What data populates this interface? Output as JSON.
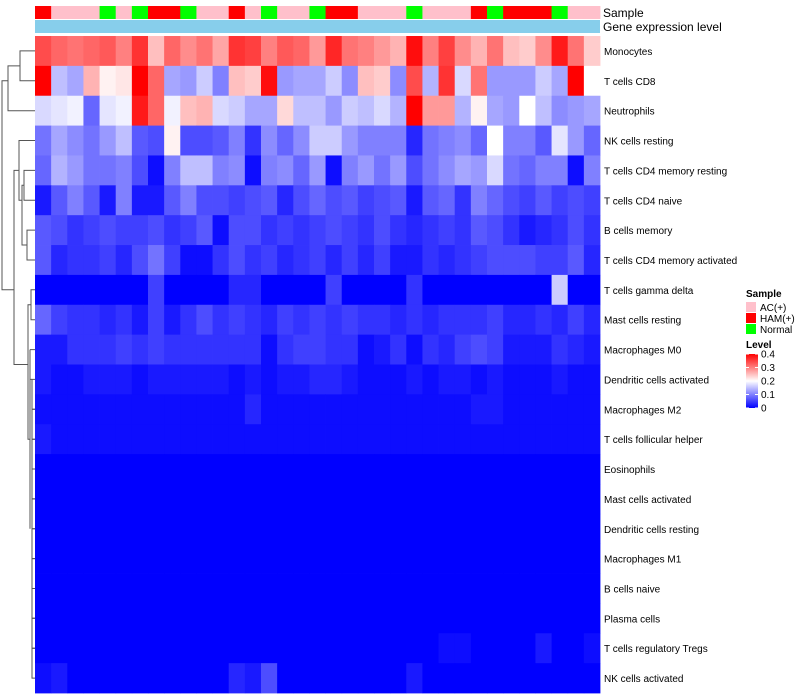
{
  "chart_data": {
    "type": "heatmap",
    "title": "",
    "column_annotations": [
      {
        "name": "Sample",
        "values": [
          "HAM(+)",
          "AC(+)",
          "AC(+)",
          "AC(+)",
          "Normal",
          "AC(+)",
          "Normal",
          "HAM(+)",
          "HAM(+)",
          "Normal",
          "AC(+)",
          "AC(+)",
          "HAM(+)",
          "AC(+)",
          "Normal",
          "AC(+)",
          "AC(+)",
          "Normal",
          "HAM(+)",
          "HAM(+)",
          "AC(+)",
          "AC(+)",
          "AC(+)",
          "Normal",
          "AC(+)",
          "AC(+)",
          "AC(+)",
          "HAM(+)",
          "Normal",
          "HAM(+)",
          "HAM(+)",
          "HAM(+)",
          "Normal",
          "AC(+)",
          "AC(+)"
        ]
      },
      {
        "name": "Gene expression level",
        "values": []
      }
    ],
    "rows": [
      "Monocytes",
      "T cells CD8",
      "Neutrophils",
      "NK cells resting",
      "T cells CD4 memory resting",
      "T cells CD4 naive",
      "B cells memory",
      "T cells CD4 memory activated",
      "T cells gamma delta",
      "Mast cells resting",
      "Macrophages M0",
      "Dendritic cells activated",
      "Macrophages M2",
      "T cells follicular helper",
      "Eosinophils",
      "Mast cells activated",
      "Dendritic cells resting",
      "Macrophages M1",
      "B cells naive",
      "Plasma cells",
      "T cells regulatory  Tregs",
      "NK cells activated"
    ],
    "n_columns": 35,
    "values": [
      [
        0.34,
        0.32,
        0.31,
        0.32,
        0.33,
        0.3,
        0.36,
        0.25,
        0.32,
        0.29,
        0.31,
        0.27,
        0.36,
        0.35,
        0.3,
        0.33,
        0.32,
        0.28,
        0.37,
        0.31,
        0.3,
        0.28,
        0.26,
        0.39,
        0.3,
        0.35,
        0.29,
        0.26,
        0.31,
        0.25,
        0.24,
        0.29,
        0.38,
        0.31,
        0.24
      ],
      [
        0.4,
        0.15,
        0.13,
        0.26,
        0.21,
        0.22,
        0.4,
        0.32,
        0.13,
        0.12,
        0.16,
        0.1,
        0.25,
        0.24,
        0.39,
        0.12,
        0.13,
        0.13,
        0.16,
        0.11,
        0.25,
        0.24,
        0.11,
        0.34,
        0.14,
        0.36,
        0.17,
        0.31,
        0.12,
        0.12,
        0.12,
        0.16,
        0.13,
        0.4,
        0.2
      ],
      [
        0.17,
        0.18,
        0.19,
        0.08,
        0.18,
        0.19,
        0.38,
        0.32,
        0.19,
        0.25,
        0.26,
        0.17,
        0.16,
        0.13,
        0.13,
        0.23,
        0.15,
        0.15,
        0.12,
        0.16,
        0.15,
        0.17,
        0.14,
        0.4,
        0.28,
        0.28,
        0.14,
        0.21,
        0.13,
        0.12,
        0.2,
        0.15,
        0.11,
        0.12,
        0.13
      ],
      [
        0.09,
        0.13,
        0.11,
        0.09,
        0.12,
        0.15,
        0.07,
        0.06,
        0.21,
        0.06,
        0.06,
        0.07,
        0.1,
        0.04,
        0.11,
        0.08,
        0.11,
        0.16,
        0.16,
        0.12,
        0.1,
        0.1,
        0.1,
        0.03,
        0.09,
        0.1,
        0.11,
        0.08,
        0.2,
        0.1,
        0.1,
        0.07,
        0.18,
        0.12,
        0.08
      ],
      [
        0.08,
        0.14,
        0.12,
        0.09,
        0.09,
        0.1,
        0.06,
        0.01,
        0.1,
        0.15,
        0.15,
        0.1,
        0.11,
        0.01,
        0.1,
        0.11,
        0.08,
        0.12,
        0.01,
        0.1,
        0.12,
        0.09,
        0.12,
        0.06,
        0.09,
        0.11,
        0.13,
        0.12,
        0.17,
        0.09,
        0.08,
        0.1,
        0.1,
        0.01,
        0.1
      ],
      [
        0.02,
        0.07,
        0.1,
        0.07,
        0.02,
        0.1,
        0.02,
        0.02,
        0.07,
        0.1,
        0.06,
        0.06,
        0.05,
        0.06,
        0.07,
        0.03,
        0.06,
        0.08,
        0.06,
        0.07,
        0.05,
        0.06,
        0.07,
        0.02,
        0.07,
        0.08,
        0.04,
        0.1,
        0.08,
        0.06,
        0.05,
        0.07,
        0.05,
        0.06,
        0.05
      ],
      [
        0.07,
        0.06,
        0.04,
        0.05,
        0.06,
        0.05,
        0.05,
        0.06,
        0.04,
        0.05,
        0.07,
        0.01,
        0.06,
        0.06,
        0.04,
        0.05,
        0.04,
        0.05,
        0.06,
        0.05,
        0.04,
        0.06,
        0.04,
        0.03,
        0.04,
        0.05,
        0.04,
        0.07,
        0.06,
        0.04,
        0.02,
        0.03,
        0.04,
        0.06,
        0.04
      ],
      [
        0.07,
        0.03,
        0.04,
        0.04,
        0.05,
        0.03,
        0.06,
        0.09,
        0.05,
        0.01,
        0.01,
        0.04,
        0.06,
        0.04,
        0.05,
        0.03,
        0.04,
        0.05,
        0.03,
        0.05,
        0.03,
        0.05,
        0.02,
        0.02,
        0.04,
        0.03,
        0.04,
        0.05,
        0.06,
        0.06,
        0.06,
        0.05,
        0.05,
        0.07,
        0.03
      ],
      [
        0.0,
        0.0,
        0.0,
        0.0,
        0.0,
        0.0,
        0.0,
        0.05,
        0.0,
        0.0,
        0.0,
        0.0,
        0.03,
        0.03,
        0.0,
        0.0,
        0.0,
        0.0,
        0.05,
        0.0,
        0.0,
        0.0,
        0.0,
        0.04,
        0.0,
        0.0,
        0.0,
        0.0,
        0.0,
        0.0,
        0.0,
        0.0,
        0.16,
        0.0,
        0.0
      ],
      [
        0.08,
        0.05,
        0.04,
        0.04,
        0.03,
        0.04,
        0.02,
        0.05,
        0.02,
        0.04,
        0.06,
        0.04,
        0.05,
        0.04,
        0.03,
        0.05,
        0.04,
        0.05,
        0.04,
        0.05,
        0.04,
        0.04,
        0.03,
        0.04,
        0.03,
        0.04,
        0.04,
        0.04,
        0.05,
        0.03,
        0.03,
        0.04,
        0.03,
        0.05,
        0.03
      ],
      [
        0.02,
        0.02,
        0.04,
        0.04,
        0.04,
        0.05,
        0.04,
        0.05,
        0.04,
        0.04,
        0.04,
        0.04,
        0.04,
        0.04,
        0.01,
        0.04,
        0.05,
        0.05,
        0.04,
        0.04,
        0.01,
        0.02,
        0.04,
        0.01,
        0.04,
        0.03,
        0.05,
        0.06,
        0.05,
        0.02,
        0.02,
        0.02,
        0.04,
        0.03,
        0.02
      ],
      [
        0.02,
        0.01,
        0.01,
        0.02,
        0.02,
        0.02,
        0.01,
        0.02,
        0.02,
        0.02,
        0.02,
        0.02,
        0.01,
        0.02,
        0.01,
        0.02,
        0.02,
        0.03,
        0.03,
        0.02,
        0.01,
        0.01,
        0.01,
        0.02,
        0.01,
        0.02,
        0.02,
        0.01,
        0.02,
        0.01,
        0.01,
        0.01,
        0.02,
        0.01,
        0.01
      ],
      [
        0.01,
        0.01,
        0.01,
        0.01,
        0.01,
        0.01,
        0.01,
        0.01,
        0.01,
        0.01,
        0.01,
        0.01,
        0.01,
        0.03,
        0.01,
        0.01,
        0.01,
        0.01,
        0.01,
        0.01,
        0.01,
        0.01,
        0.01,
        0.01,
        0.01,
        0.01,
        0.01,
        0.02,
        0.02,
        0.01,
        0.01,
        0.01,
        0.01,
        0.01,
        0.01
      ],
      [
        0.02,
        0.01,
        0.01,
        0.01,
        0.01,
        0.01,
        0.01,
        0.01,
        0.01,
        0.01,
        0.01,
        0.01,
        0.01,
        0.01,
        0.01,
        0.01,
        0.01,
        0.01,
        0.01,
        0.01,
        0.01,
        0.01,
        0.01,
        0.01,
        0.01,
        0.01,
        0.01,
        0.01,
        0.01,
        0.01,
        0.01,
        0.01,
        0.01,
        0.01,
        0.01
      ],
      [
        0.0,
        0.0,
        0.0,
        0.0,
        0.0,
        0.0,
        0.0,
        0.0,
        0.0,
        0.0,
        0.0,
        0.0,
        0.0,
        0.0,
        0.0,
        0.0,
        0.0,
        0.0,
        0.0,
        0.0,
        0.0,
        0.0,
        0.0,
        0.0,
        0.0,
        0.0,
        0.0,
        0.0,
        0.0,
        0.0,
        0.0,
        0.0,
        0.0,
        0.0,
        0.0
      ],
      [
        0.0,
        0.0,
        0.0,
        0.0,
        0.0,
        0.0,
        0.0,
        0.0,
        0.0,
        0.0,
        0.0,
        0.0,
        0.0,
        0.0,
        0.0,
        0.0,
        0.0,
        0.0,
        0.0,
        0.0,
        0.0,
        0.0,
        0.0,
        0.0,
        0.0,
        0.0,
        0.0,
        0.0,
        0.0,
        0.0,
        0.0,
        0.0,
        0.0,
        0.0,
        0.0
      ],
      [
        0.0,
        0.0,
        0.0,
        0.0,
        0.0,
        0.0,
        0.0,
        0.0,
        0.0,
        0.0,
        0.0,
        0.0,
        0.0,
        0.0,
        0.0,
        0.0,
        0.0,
        0.0,
        0.0,
        0.0,
        0.0,
        0.0,
        0.0,
        0.0,
        0.0,
        0.0,
        0.0,
        0.0,
        0.0,
        0.0,
        0.0,
        0.0,
        0.0,
        0.0,
        0.0
      ],
      [
        0.0,
        0.0,
        0.0,
        0.0,
        0.0,
        0.0,
        0.0,
        0.0,
        0.0,
        0.0,
        0.0,
        0.0,
        0.0,
        0.0,
        0.0,
        0.0,
        0.0,
        0.0,
        0.0,
        0.0,
        0.0,
        0.0,
        0.0,
        0.0,
        0.0,
        0.0,
        0.0,
        0.0,
        0.0,
        0.0,
        0.0,
        0.0,
        0.0,
        0.0,
        0.0
      ],
      [
        0.0,
        0.0,
        0.0,
        0.0,
        0.0,
        0.0,
        0.0,
        0.0,
        0.0,
        0.0,
        0.0,
        0.0,
        0.0,
        0.0,
        0.0,
        0.0,
        0.0,
        0.0,
        0.0,
        0.0,
        0.0,
        0.0,
        0.0,
        0.0,
        0.0,
        0.0,
        0.0,
        0.0,
        0.0,
        0.0,
        0.0,
        0.0,
        0.0,
        0.0,
        0.0
      ],
      [
        0.0,
        0.0,
        0.0,
        0.0,
        0.0,
        0.0,
        0.0,
        0.0,
        0.0,
        0.0,
        0.0,
        0.0,
        0.0,
        0.0,
        0.0,
        0.0,
        0.0,
        0.0,
        0.0,
        0.0,
        0.0,
        0.0,
        0.0,
        0.0,
        0.0,
        0.0,
        0.0,
        0.0,
        0.0,
        0.0,
        0.0,
        0.0,
        0.0,
        0.0,
        0.0
      ],
      [
        0.0,
        0.0,
        0.0,
        0.0,
        0.0,
        0.0,
        0.0,
        0.0,
        0.0,
        0.0,
        0.0,
        0.0,
        0.0,
        0.0,
        0.0,
        0.0,
        0.0,
        0.0,
        0.0,
        0.0,
        0.0,
        0.0,
        0.0,
        0.0,
        0.0,
        0.01,
        0.01,
        0.0,
        0.0,
        0.0,
        0.0,
        0.02,
        0.0,
        0.0,
        0.01
      ],
      [
        0.01,
        0.02,
        0.0,
        0.0,
        0.0,
        0.0,
        0.0,
        0.0,
        0.0,
        0.0,
        0.0,
        0.0,
        0.03,
        0.02,
        0.06,
        0.0,
        0.0,
        0.0,
        0.0,
        0.0,
        0.0,
        0.0,
        0.0,
        0.02,
        0.0,
        0.0,
        0.0,
        0.0,
        0.0,
        0.0,
        0.0,
        0.0,
        0.0,
        0.0,
        0.0
      ]
    ],
    "color_scale": {
      "min": 0,
      "max": 0.4,
      "low": "#0000ff",
      "mid": "#ffffff",
      "high": "#ff0000",
      "midpoint": 0.2
    },
    "legends": [
      {
        "title": "Sample",
        "entries": [
          {
            "label": "AC(+)",
            "color": "#ffc0cb"
          },
          {
            "label": "HAM(+)",
            "color": "#ff0000"
          },
          {
            "label": "Normal",
            "color": "#00ff00"
          }
        ]
      },
      {
        "title": "Level",
        "ticks": [
          "0.4",
          "0.3",
          "0.2",
          "0.1",
          "0"
        ]
      }
    ],
    "annotation_colors": {
      "Gene expression level": "#87ceeb"
    }
  }
}
